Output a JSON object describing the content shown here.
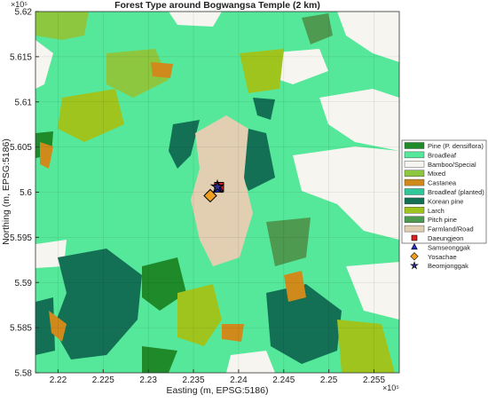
{
  "chart_data": {
    "type": "map",
    "title": "Forest Type around Bogwangsa Temple (2 km)",
    "x_label": "Easting (m, EPSG:5186)",
    "y_label": "Northing (m, EPSG:5186)",
    "x_offset_label": "×10⁵",
    "y_offset_label": "×10⁵",
    "xlim": [
      221750,
      225780
    ],
    "ylim": [
      558000,
      562000
    ],
    "xticks": [
      {
        "value": 222000,
        "label": "2.22"
      },
      {
        "value": 222500,
        "label": "2.225"
      },
      {
        "value": 223000,
        "label": "2.23"
      },
      {
        "value": 223500,
        "label": "2.235"
      },
      {
        "value": 224000,
        "label": "2.24"
      },
      {
        "value": 224500,
        "label": "2.245"
      },
      {
        "value": 225000,
        "label": "2.25"
      },
      {
        "value": 225500,
        "label": "2.255"
      }
    ],
    "yticks": [
      {
        "value": 558000,
        "label": "5.58"
      },
      {
        "value": 558500,
        "label": "5.585"
      },
      {
        "value": 559000,
        "label": "5.59"
      },
      {
        "value": 559500,
        "label": "5.595"
      },
      {
        "value": 560000,
        "label": "5.6"
      },
      {
        "value": 560500,
        "label": "5.605"
      },
      {
        "value": 561000,
        "label": "5.61"
      },
      {
        "value": 561500,
        "label": "5.615"
      },
      {
        "value": 562000,
        "label": "5.62"
      }
    ],
    "grid": true,
    "legend": "right",
    "areas": [
      {
        "name": "Pine (P. densiflora)",
        "color": "#1e8a2a"
      },
      {
        "name": "Broadleaf",
        "color": "#55e89a"
      },
      {
        "name": "Bamboo/Special",
        "color": "#f7f5f0"
      },
      {
        "name": "Mixed",
        "color": "#8dc63f"
      },
      {
        "name": "Castanea",
        "color": "#d08a1c"
      },
      {
        "name": "Broadleaf (planted)",
        "color": "#30c89a"
      },
      {
        "name": "Korean pine",
        "color": "#147055"
      },
      {
        "name": "Larch",
        "color": "#a0c41e"
      },
      {
        "name": "Pitch pine",
        "color": "#4d9a50"
      },
      {
        "name": "Farmland/Road",
        "color": "#e2cfb2"
      }
    ],
    "points": [
      {
        "name": "Daeungjeon",
        "color": "#e02020",
        "marker": "square",
        "x": 223784,
        "y": 560059
      },
      {
        "name": "Samseonggak",
        "color": "#2030d0",
        "marker": "triangle",
        "x": 223775,
        "y": 560040
      },
      {
        "name": "Yosachae",
        "color": "#f0a020",
        "marker": "diamond",
        "x": 223686,
        "y": 559961
      },
      {
        "name": "Beomjonggak",
        "color": "#303090",
        "marker": "star",
        "x": 223765,
        "y": 560059
      }
    ]
  }
}
